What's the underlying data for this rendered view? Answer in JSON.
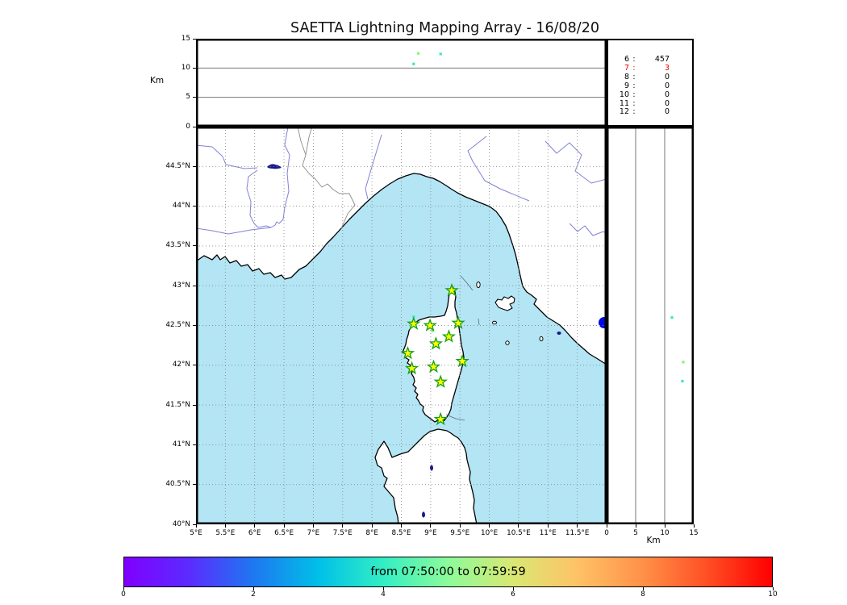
{
  "title": "SAETTA Lightning Mapping Array - 16/08/20",
  "colors": {
    "sea": "#b3e5f4",
    "land": "#ffffff",
    "coastline": "#000000",
    "river": "#8181d6",
    "national_border": "#8c8c8c",
    "lake": "#1a1a8c",
    "lake_round": "#0009e6",
    "grid": "#8a8a8a",
    "panel_gridline": "#777777",
    "star_fill": "#ffff00",
    "star_stroke": "#14a014",
    "stats_highlight": "#e60000",
    "source_cyan": "#3fe3cb",
    "source_green": "#8fee7d"
  },
  "top_panel": {
    "ylabel": "Km",
    "yticks": [
      {
        "v": 15,
        "label": "15"
      },
      {
        "v": 10,
        "label": "10"
      },
      {
        "v": 5,
        "label": "5"
      },
      {
        "v": 0,
        "label": "0"
      }
    ]
  },
  "stats_box": {
    "rows": [
      {
        "level": "6",
        "count": "457",
        "highlight": false
      },
      {
        "level": "7",
        "count": "3",
        "highlight": true
      },
      {
        "level": "8",
        "count": "0",
        "highlight": false
      },
      {
        "level": "9",
        "count": "0",
        "highlight": false
      },
      {
        "level": "10",
        "count": "0",
        "highlight": false
      },
      {
        "level": "11",
        "count": "0",
        "highlight": false
      },
      {
        "level": "12",
        "count": "0",
        "highlight": false
      }
    ]
  },
  "map_panel": {
    "lat_ticks": [
      {
        "v": 44.5,
        "label": "44.5°N"
      },
      {
        "v": 44,
        "label": "44°N"
      },
      {
        "v": 43.5,
        "label": "43.5°N"
      },
      {
        "v": 43,
        "label": "43°N"
      },
      {
        "v": 42.5,
        "label": "42.5°N"
      },
      {
        "v": 42,
        "label": "42°N"
      },
      {
        "v": 41.5,
        "label": "41.5°N"
      },
      {
        "v": 41,
        "label": "41°N"
      },
      {
        "v": 40.5,
        "label": "40.5°N"
      },
      {
        "v": 40,
        "label": "40°N"
      }
    ],
    "lon_ticks": [
      {
        "v": 5,
        "label": "5°E"
      },
      {
        "v": 5.5,
        "label": "5.5°E"
      },
      {
        "v": 6,
        "label": "6°E"
      },
      {
        "v": 6.5,
        "label": "6.5°E"
      },
      {
        "v": 7,
        "label": "7°E"
      },
      {
        "v": 7.5,
        "label": "7.5°E"
      },
      {
        "v": 8,
        "label": "8°E"
      },
      {
        "v": 8.5,
        "label": "8.5°E"
      },
      {
        "v": 9,
        "label": "9°E"
      },
      {
        "v": 9.5,
        "label": "9.5°E"
      },
      {
        "v": 10,
        "label": "10°E"
      },
      {
        "v": 10.5,
        "label": "10.5°E"
      },
      {
        "v": 11,
        "label": "11°E"
      },
      {
        "v": 11.5,
        "label": "11.5°E"
      }
    ]
  },
  "right_panel": {
    "xlabel": "Km",
    "xticks": [
      {
        "v": 0,
        "label": "0"
      },
      {
        "v": 5,
        "label": "5"
      },
      {
        "v": 10,
        "label": "10"
      },
      {
        "v": 15,
        "label": "15"
      }
    ]
  },
  "colorbar": {
    "label": "from 07:50:00 to 07:59:59",
    "ticks": [
      {
        "v": 0,
        "label": "0"
      },
      {
        "v": 2,
        "label": "2"
      },
      {
        "v": 4,
        "label": "4"
      },
      {
        "v": 6,
        "label": "6"
      },
      {
        "v": 8,
        "label": "8"
      },
      {
        "v": 10,
        "label": "10"
      }
    ]
  },
  "chart_data": {
    "type": "scatter",
    "title": "SAETTA Lightning Mapping Array - 16/08/20",
    "time_window": "from 07:50:00 to 07:59:59",
    "map_extent": {
      "lon_min": 5,
      "lon_max": 12,
      "lat_min": 40,
      "lat_max": 45
    },
    "grid_step_deg": 0.5,
    "altitude_range_km": [
      0,
      15
    ],
    "altitude_gridlines_km": [
      5,
      10
    ],
    "colorbar": {
      "min": 0,
      "max": 10,
      "ticks": [
        0,
        2,
        4,
        6,
        8,
        10
      ],
      "colormap": "rainbow"
    },
    "chi2_counts": [
      {
        "level": 6,
        "count": 457
      },
      {
        "level": 7,
        "count": 3
      },
      {
        "level": 8,
        "count": 0
      },
      {
        "level": 9,
        "count": 0
      },
      {
        "level": 10,
        "count": 0
      },
      {
        "level": 11,
        "count": 0
      },
      {
        "level": 12,
        "count": 0
      }
    ],
    "station_markers_lonlat": [
      {
        "lon": 9.36,
        "lat": 42.94
      },
      {
        "lon": 8.71,
        "lat": 42.52
      },
      {
        "lon": 8.99,
        "lat": 42.5
      },
      {
        "lon": 9.47,
        "lat": 42.53
      },
      {
        "lon": 9.31,
        "lat": 42.36
      },
      {
        "lon": 9.09,
        "lat": 42.27
      },
      {
        "lon": 8.61,
        "lat": 42.15
      },
      {
        "lon": 9.54,
        "lat": 42.05
      },
      {
        "lon": 8.68,
        "lat": 41.96
      },
      {
        "lon": 9.05,
        "lat": 41.98
      },
      {
        "lon": 9.17,
        "lat": 41.79
      },
      {
        "lon": 9.17,
        "lat": 41.32
      }
    ],
    "sources_lon_alt": [
      {
        "lon": 8.79,
        "alt_km": 12.5,
        "color_key": "source_green"
      },
      {
        "lon": 9.17,
        "alt_km": 12.4,
        "color_key": "source_cyan"
      },
      {
        "lon": 8.71,
        "alt_km": 10.7,
        "color_key": "source_cyan"
      }
    ],
    "sources_map": [
      {
        "lon": 8.71,
        "lat": 42.61,
        "color_key": "source_cyan"
      },
      {
        "lon": 9.03,
        "lat": 42.43,
        "color_key": "source_green"
      }
    ],
    "sources_alt_lat": [
      {
        "alt_km": 11.25,
        "lat": 42.6,
        "color_key": "source_cyan"
      },
      {
        "alt_km": 13.2,
        "lat": 42.04,
        "color_key": "source_green"
      },
      {
        "alt_km": 13.05,
        "lat": 41.8,
        "color_key": "source_cyan"
      }
    ]
  }
}
